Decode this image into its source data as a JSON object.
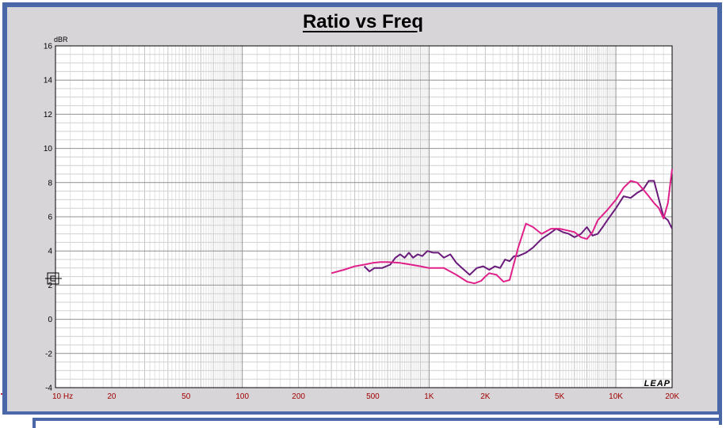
{
  "chart_data": {
    "type": "line",
    "title": "Ratio vs Freq",
    "ylabel": "dBR",
    "xscale": "log",
    "xlim": [
      10,
      20000
    ],
    "ylim": [
      -4,
      16
    ],
    "grid": true,
    "yticks": [
      -4,
      -2,
      0,
      2,
      4,
      6,
      8,
      10,
      12,
      14,
      16
    ],
    "xticks": [
      {
        "value": 10,
        "label": "10  Hz"
      },
      {
        "value": 20,
        "label": "20"
      },
      {
        "value": 50,
        "label": "50"
      },
      {
        "value": 100,
        "label": "100"
      },
      {
        "value": 200,
        "label": "200"
      },
      {
        "value": 500,
        "label": "500"
      },
      {
        "value": 1000,
        "label": "1K"
      },
      {
        "value": 2000,
        "label": "2K"
      },
      {
        "value": 5000,
        "label": "5K"
      },
      {
        "value": 10000,
        "label": "10K"
      },
      {
        "value": 20000,
        "label": "20K"
      }
    ],
    "series": [
      {
        "color": "#6a1a7a",
        "x": [
          450,
          480,
          510,
          560,
          620,
          660,
          700,
          740,
          780,
          820,
          870,
          920,
          980,
          1050,
          1120,
          1200,
          1300,
          1400,
          1500,
          1650,
          1800,
          1950,
          2100,
          2250,
          2400,
          2550,
          2700,
          2850,
          3000,
          3300,
          3600,
          4000,
          4400,
          4800,
          5200,
          5600,
          6000,
          6500,
          7000,
          7500,
          8000,
          8500,
          9000,
          10000,
          11000,
          12000,
          13000,
          14000,
          15000,
          16000,
          17000,
          18000,
          19000,
          20000
        ],
        "y": [
          3.1,
          2.8,
          3.0,
          3.0,
          3.2,
          3.6,
          3.8,
          3.6,
          3.9,
          3.6,
          3.8,
          3.7,
          4.0,
          3.9,
          3.9,
          3.6,
          3.8,
          3.3,
          3.0,
          2.6,
          3.0,
          3.1,
          2.9,
          3.1,
          3.0,
          3.5,
          3.4,
          3.7,
          3.7,
          3.9,
          4.2,
          4.7,
          5.0,
          5.3,
          5.1,
          5.0,
          4.8,
          5.0,
          5.4,
          4.9,
          5.0,
          5.4,
          5.8,
          6.5,
          7.2,
          7.1,
          7.4,
          7.6,
          8.1,
          8.1,
          7.0,
          6.0,
          5.8,
          5.3
        ]
      },
      {
        "color": "#e0208a",
        "x": [
          300,
          350,
          400,
          450,
          500,
          550,
          600,
          700,
          800,
          900,
          1000,
          1100,
          1200,
          1400,
          1600,
          1750,
          1900,
          2000,
          2100,
          2300,
          2500,
          2700,
          3000,
          3300,
          3600,
          4000,
          4500,
          5000,
          5500,
          6000,
          6500,
          7000,
          7500,
          8000,
          9000,
          10000,
          11000,
          12000,
          13000,
          14000,
          15000,
          16000,
          17000,
          18000,
          19000,
          20000
        ],
        "y": [
          2.7,
          2.9,
          3.1,
          3.2,
          3.3,
          3.35,
          3.35,
          3.3,
          3.2,
          3.1,
          3.0,
          3.0,
          3.0,
          2.6,
          2.2,
          2.1,
          2.25,
          2.5,
          2.7,
          2.6,
          2.2,
          2.3,
          4.2,
          5.6,
          5.4,
          5.0,
          5.3,
          5.3,
          5.2,
          5.1,
          4.8,
          4.7,
          5.1,
          5.8,
          6.4,
          7.0,
          7.7,
          8.1,
          8.0,
          7.6,
          7.2,
          6.8,
          6.5,
          5.9,
          6.8,
          8.8
        ]
      }
    ]
  },
  "branding": {
    "logo_text": "LEAP"
  }
}
